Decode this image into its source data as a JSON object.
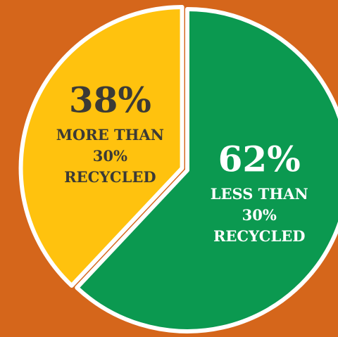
{
  "chart_data": {
    "type": "pie",
    "categories": [
      [
        "LESS THAN",
        "30%",
        "RECYCLED"
      ],
      [
        "MORE THAN",
        "30%",
        "RECYCLED"
      ]
    ],
    "values": [
      62,
      38
    ],
    "value_labels": [
      "62%",
      "38%"
    ],
    "colors": [
      "#0b9950",
      "#ffc20e"
    ],
    "explode": [
      0,
      8
    ],
    "background": "#d5661b"
  }
}
